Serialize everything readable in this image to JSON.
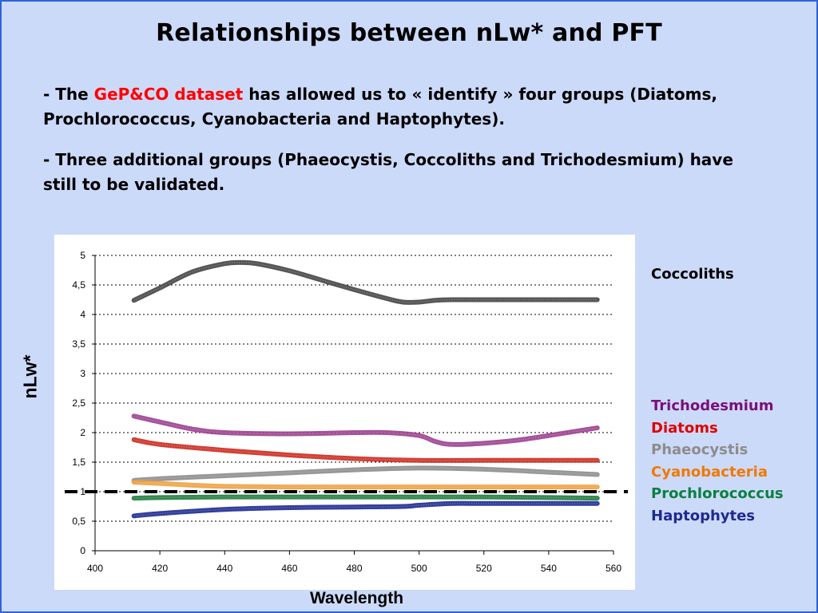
{
  "slide": {
    "title": "Relationships between nLw* and PFT",
    "para1": {
      "prefix": "- The ",
      "highlight": "GeP&CO dataset",
      "suffix": " has allowed us to « identify » four groups (Diatoms, Prochlorococcus, Cyanobacteria and Haptophytes)."
    },
    "para2": "- Three additional groups (Phaeocystis, Coccoliths and Trichodesmium) have still to be validated.",
    "background_color": "#ccdaf9",
    "border_color": "#2f63d6",
    "highlight_color": "#ff0000"
  },
  "chart_data": {
    "type": "line",
    "xlabel": "Wavelength",
    "ylabel": "nLw*",
    "xlim": [
      400,
      560
    ],
    "ylim": [
      0,
      5
    ],
    "xticks": [
      "400",
      "420",
      "440",
      "460",
      "480",
      "500",
      "520",
      "540",
      "560"
    ],
    "yticks": [
      "0",
      "0,5",
      "1",
      "1,5",
      "2",
      "2,5",
      "3",
      "3,5",
      "4",
      "4,5",
      "5"
    ],
    "grid": "horizontal-dotted",
    "reference_line": {
      "y": 1,
      "style": "dashed",
      "color": "#000000"
    },
    "legend_placement": "right",
    "series": [
      {
        "name": "Coccoliths",
        "color": "#444444",
        "legend_color": "#000000",
        "x": [
          412,
          420,
          430,
          440,
          445,
          450,
          460,
          470,
          480,
          490,
          495,
          500,
          505,
          510,
          520,
          530,
          540,
          555
        ],
        "y": [
          4.24,
          4.45,
          4.72,
          4.86,
          4.88,
          4.86,
          4.74,
          4.58,
          4.42,
          4.27,
          4.21,
          4.21,
          4.24,
          4.25,
          4.25,
          4.25,
          4.25,
          4.25
        ]
      },
      {
        "name": "Trichodesmium",
        "color": "#9b3f8f",
        "legend_color": "#7b0e7b",
        "x": [
          412,
          420,
          430,
          440,
          460,
          480,
          490,
          500,
          505,
          510,
          520,
          530,
          540,
          555
        ],
        "y": [
          2.28,
          2.18,
          2.06,
          2.0,
          1.98,
          2.0,
          2.0,
          1.95,
          1.85,
          1.8,
          1.82,
          1.87,
          1.95,
          2.08
        ]
      },
      {
        "name": "Diatoms",
        "color": "#cc2a1f",
        "legend_color": "#e00000",
        "x": [
          412,
          420,
          440,
          460,
          480,
          500,
          520,
          540,
          555
        ],
        "y": [
          1.88,
          1.8,
          1.7,
          1.62,
          1.56,
          1.53,
          1.53,
          1.53,
          1.53
        ]
      },
      {
        "name": "Phaeocystis",
        "color": "#8c8c8c",
        "legend_color": "#8c8c8c",
        "x": [
          412,
          420,
          440,
          460,
          480,
          500,
          520,
          540,
          555
        ],
        "y": [
          1.19,
          1.22,
          1.27,
          1.32,
          1.37,
          1.4,
          1.38,
          1.33,
          1.29
        ]
      },
      {
        "name": "Cyanobacteria",
        "color": "#f0a040",
        "legend_color": "#f07800",
        "x": [
          412,
          420,
          430,
          440,
          460,
          480,
          500,
          520,
          540,
          555
        ],
        "y": [
          1.16,
          1.14,
          1.11,
          1.09,
          1.08,
          1.08,
          1.08,
          1.08,
          1.08,
          1.08
        ]
      },
      {
        "name": "Prochlorococcus",
        "color": "#1f7a3c",
        "legend_color": "#0a8040",
        "x": [
          412,
          420,
          440,
          460,
          480,
          500,
          520,
          540,
          555
        ],
        "y": [
          0.89,
          0.9,
          0.91,
          0.91,
          0.91,
          0.91,
          0.91,
          0.9,
          0.89
        ]
      },
      {
        "name": "Haptophytes",
        "color": "#1c2a90",
        "legend_color": "#1c2a90",
        "x": [
          412,
          420,
          440,
          460,
          480,
          495,
          500,
          510,
          520,
          540,
          555
        ],
        "y": [
          0.59,
          0.63,
          0.7,
          0.73,
          0.74,
          0.75,
          0.77,
          0.8,
          0.8,
          0.8,
          0.8
        ]
      }
    ]
  }
}
